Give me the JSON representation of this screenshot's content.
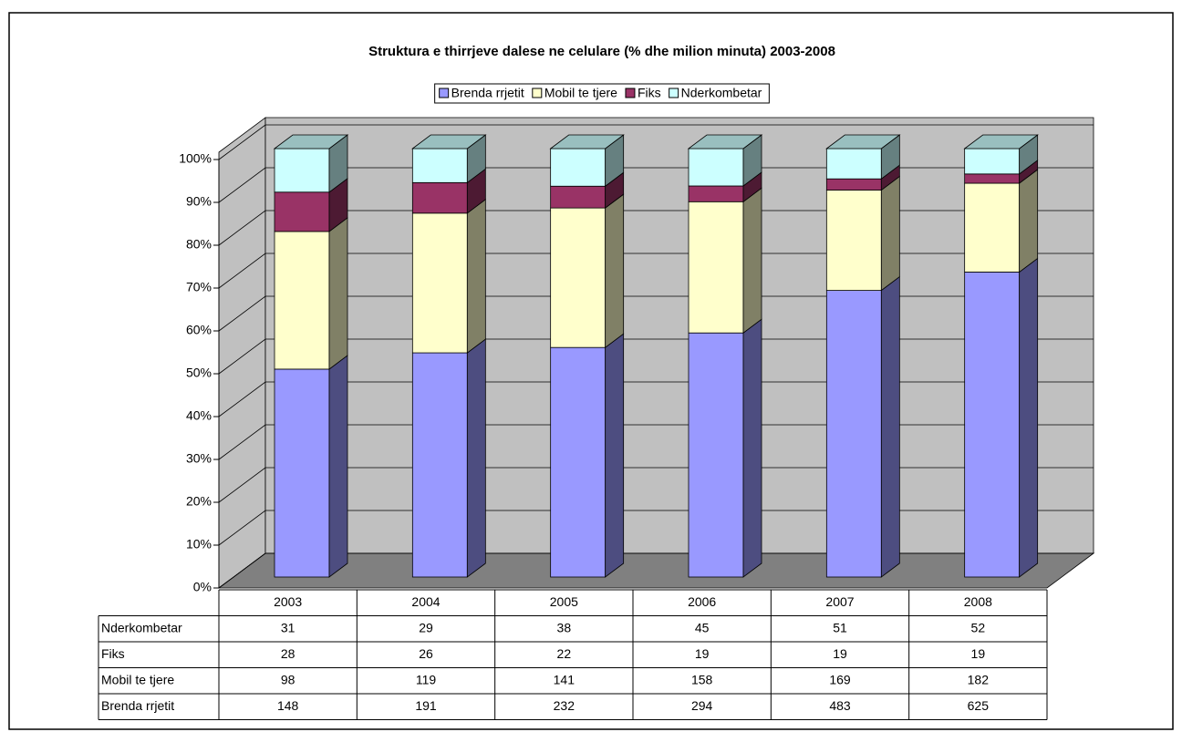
{
  "chart_data": {
    "type": "bar",
    "stacked": "percent",
    "title": "Struktura e thirrjeve dalese ne celulare (% dhe milion minuta) 2003-2008",
    "categories": [
      "2003",
      "2004",
      "2005",
      "2006",
      "2007",
      "2008"
    ],
    "series": [
      {
        "name": "Brenda rrjetit",
        "color": "#9999ff",
        "values": [
          148,
          191,
          232,
          294,
          483,
          625
        ]
      },
      {
        "name": "Mobil te tjere",
        "color": "#ffffcc",
        "values": [
          98,
          119,
          141,
          158,
          169,
          182
        ]
      },
      {
        "name": "Fiks",
        "color": "#993366",
        "values": [
          28,
          26,
          22,
          19,
          19,
          19
        ]
      },
      {
        "name": "Nderkombetar",
        "color": "#ccffff",
        "values": [
          31,
          29,
          38,
          45,
          51,
          52
        ]
      }
    ],
    "ylim": [
      0,
      100
    ],
    "yticks": [
      {
        "value": 0,
        "label": "0%"
      },
      {
        "value": 10,
        "label": "10%"
      },
      {
        "value": 20,
        "label": "20%"
      },
      {
        "value": 30,
        "label": "30%"
      },
      {
        "value": 40,
        "label": "40%"
      },
      {
        "value": 50,
        "label": "50%"
      },
      {
        "value": 60,
        "label": "60%"
      },
      {
        "value": 70,
        "label": "70%"
      },
      {
        "value": 80,
        "label": "80%"
      },
      {
        "value": 90,
        "label": "90%"
      },
      {
        "value": 100,
        "label": "100%"
      }
    ],
    "grid": true,
    "legend": "top",
    "data_table": true
  }
}
